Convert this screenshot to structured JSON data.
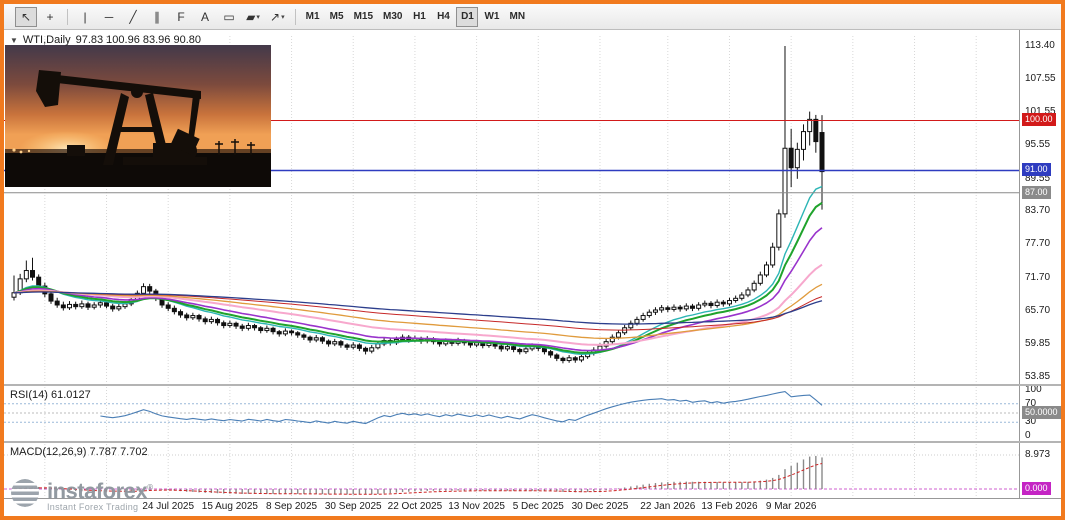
{
  "toolbar": {
    "items": [
      {
        "id": "pointer",
        "glyph": "↖",
        "active": true
      },
      {
        "id": "crosshair",
        "glyph": "+"
      },
      {
        "sep": true
      },
      {
        "id": "vertical-line",
        "glyph": "|"
      },
      {
        "id": "horizontal-line",
        "glyph": "─"
      },
      {
        "id": "trendline",
        "glyph": "╱"
      },
      {
        "id": "equidistant-channel",
        "glyph": "∥"
      },
      {
        "id": "fibonacci",
        "glyph": "F"
      },
      {
        "id": "text",
        "glyph": "A"
      },
      {
        "id": "text-label",
        "glyph": "▭"
      },
      {
        "id": "shapes",
        "glyph": "▰",
        "caret": true
      },
      {
        "id": "arrows",
        "glyph": "↗",
        "caret": true
      },
      {
        "sep": true
      }
    ],
    "timeframes": [
      "M1",
      "M5",
      "M15",
      "M30",
      "H1",
      "H4",
      "D1",
      "W1",
      "MN"
    ],
    "active_timeframe": "D1"
  },
  "chart_header": {
    "symbol": "WTI,Daily",
    "ohlc": "97.83 100.96 83.96 90.80"
  },
  "price_axis": {
    "ticks": [
      "113.40",
      "107.55",
      "101.55",
      "95.55",
      "89.55",
      "83.70",
      "77.70",
      "71.70",
      "65.70",
      "59.85",
      "53.85"
    ],
    "lines": [
      {
        "price": 100.0,
        "label": "100.00",
        "color": "#d21a1a"
      },
      {
        "price": 91.0,
        "label": "91.00",
        "color": "#2e3cc0"
      },
      {
        "price": 87.0,
        "label": "87.00",
        "color": "#8a8a8a"
      }
    ]
  },
  "rsi_panel": {
    "name": "RSI(14)",
    "value": "61.0127",
    "levels": [
      {
        "v": 100,
        "label": "100"
      },
      {
        "v": 70,
        "label": "70"
      },
      {
        "v": 30,
        "label": "30"
      },
      {
        "v": 0,
        "label": "0"
      }
    ],
    "mid_badge": {
      "v": 50,
      "label": "50.0000",
      "color": "#8a8a8a"
    },
    "line_color": "#4a7eb5"
  },
  "macd_panel": {
    "name": "MACD(12,26,9)",
    "value": "7.787 7.702",
    "top_level": {
      "v": 8.973,
      "label": "8.973"
    },
    "zero_badge": {
      "v": 0,
      "label": "0.000",
      "color": "#c424c4"
    },
    "histogram_color": "#8a8a8a",
    "signal_color": "#cf2525"
  },
  "date_axis": {
    "ticks": [
      {
        "i": 25,
        "label": "24 Jul 2025"
      },
      {
        "i": 35,
        "label": "15 Aug 2025"
      },
      {
        "i": 45,
        "label": "8 Sep 2025"
      },
      {
        "i": 55,
        "label": "30 Sep 2025"
      },
      {
        "i": 65,
        "label": "22 Oct 2025"
      },
      {
        "i": 75,
        "label": "13 Nov 2025"
      },
      {
        "i": 85,
        "label": "5 Dec 2025"
      },
      {
        "i": 95,
        "label": "30 Dec 2025"
      },
      {
        "i": 106,
        "label": "22 Jan 2026"
      },
      {
        "i": 116,
        "label": "13 Feb 2026"
      },
      {
        "i": 126,
        "label": "9 Mar 2026"
      }
    ]
  },
  "logo": {
    "brand": "instaforex",
    "registered": "®",
    "tagline": "Instant Forex Trading"
  },
  "photo": {
    "description": "oil pumpjack silhouette at sunset"
  },
  "chart_data": {
    "type": "candlestick",
    "symbol": "WTI",
    "timeframe": "Daily",
    "title": "WTI,Daily 97.83 100.96 83.96 90.80",
    "last_ohlc": {
      "open": 97.83,
      "high": 100.96,
      "low": 83.96,
      "close": 90.8
    },
    "ylim": [
      53.3,
      115.2
    ],
    "overlay_lines": [
      100.0,
      91.0,
      87.0
    ],
    "candles": [
      [
        68.2,
        72.1,
        67.6,
        69.0
      ],
      [
        69.0,
        72.4,
        68.6,
        71.5
      ],
      [
        71.5,
        74.8,
        70.9,
        73.0
      ],
      [
        73.0,
        75.3,
        71.2,
        71.8
      ],
      [
        71.8,
        72.3,
        69.6,
        70.2
      ],
      [
        70.2,
        70.8,
        68.2,
        68.8
      ],
      [
        68.8,
        69.3,
        67.0,
        67.5
      ],
      [
        67.5,
        68.1,
        66.3,
        66.8
      ],
      [
        66.8,
        67.4,
        65.8,
        66.3
      ],
      [
        66.3,
        67.5,
        65.9,
        66.9
      ],
      [
        66.9,
        67.4,
        66.0,
        66.5
      ],
      [
        66.5,
        67.6,
        66.1,
        67.0
      ],
      [
        67.0,
        67.4,
        65.9,
        66.4
      ],
      [
        66.4,
        67.3,
        66.0,
        66.8
      ],
      [
        66.8,
        67.8,
        66.3,
        67.2
      ],
      [
        67.2,
        67.6,
        66.2,
        66.6
      ],
      [
        66.6,
        67.0,
        65.6,
        66.1
      ],
      [
        66.1,
        67.0,
        65.7,
        66.5
      ],
      [
        66.5,
        67.5,
        66.1,
        67.0
      ],
      [
        67.0,
        68.3,
        66.6,
        67.8
      ],
      [
        67.8,
        69.4,
        67.4,
        68.9
      ],
      [
        68.9,
        70.7,
        68.5,
        70.1
      ],
      [
        70.1,
        70.6,
        68.8,
        69.3
      ],
      [
        69.3,
        69.7,
        67.5,
        68.0
      ],
      [
        68.0,
        68.4,
        66.3,
        66.8
      ],
      [
        66.8,
        67.3,
        65.7,
        66.2
      ],
      [
        66.2,
        66.7,
        65.1,
        65.6
      ],
      [
        65.6,
        66.0,
        64.5,
        65.0
      ],
      [
        65.0,
        65.4,
        64.0,
        64.5
      ],
      [
        64.5,
        65.4,
        64.1,
        64.9
      ],
      [
        64.9,
        65.2,
        63.8,
        64.3
      ],
      [
        64.3,
        64.7,
        63.3,
        63.8
      ],
      [
        63.8,
        64.7,
        63.4,
        64.2
      ],
      [
        64.2,
        64.5,
        63.1,
        63.6
      ],
      [
        63.6,
        64.0,
        62.6,
        63.1
      ],
      [
        63.1,
        64.0,
        62.7,
        63.5
      ],
      [
        63.5,
        63.8,
        62.5,
        63.0
      ],
      [
        63.0,
        63.4,
        62.1,
        62.6
      ],
      [
        62.6,
        63.6,
        62.2,
        63.1
      ],
      [
        63.1,
        63.4,
        62.2,
        62.7
      ],
      [
        62.7,
        63.0,
        61.7,
        62.2
      ],
      [
        62.2,
        63.1,
        61.8,
        62.6
      ],
      [
        62.6,
        62.9,
        61.5,
        62.0
      ],
      [
        62.0,
        62.3,
        61.1,
        61.6
      ],
      [
        61.6,
        62.6,
        61.2,
        62.1
      ],
      [
        62.1,
        62.4,
        61.3,
        61.8
      ],
      [
        61.8,
        62.1,
        60.9,
        61.4
      ],
      [
        61.4,
        61.7,
        60.5,
        61.0
      ],
      [
        61.0,
        61.3,
        60.0,
        60.5
      ],
      [
        60.5,
        61.4,
        60.1,
        60.9
      ],
      [
        60.9,
        61.2,
        59.8,
        60.3
      ],
      [
        60.3,
        60.6,
        59.3,
        59.8
      ],
      [
        59.8,
        60.7,
        59.4,
        60.2
      ],
      [
        60.2,
        60.5,
        59.1,
        59.6
      ],
      [
        59.6,
        59.9,
        58.7,
        59.2
      ],
      [
        59.2,
        60.1,
        58.8,
        59.6
      ],
      [
        59.6,
        59.9,
        58.5,
        59.0
      ],
      [
        59.0,
        59.3,
        57.9,
        58.5
      ],
      [
        58.5,
        59.6,
        58.1,
        59.1
      ],
      [
        59.1,
        60.3,
        58.8,
        59.8
      ],
      [
        59.8,
        60.9,
        59.4,
        60.4
      ],
      [
        60.4,
        60.8,
        59.5,
        60.0
      ],
      [
        60.0,
        61.1,
        59.6,
        60.6
      ],
      [
        60.6,
        61.5,
        60.2,
        61.0
      ],
      [
        61.0,
        61.4,
        60.0,
        60.5
      ],
      [
        60.5,
        61.3,
        60.1,
        60.8
      ],
      [
        60.8,
        61.1,
        59.8,
        60.3
      ],
      [
        60.3,
        61.2,
        59.9,
        60.7
      ],
      [
        60.7,
        61.0,
        59.7,
        60.2
      ],
      [
        60.2,
        60.5,
        59.3,
        59.8
      ],
      [
        59.8,
        60.8,
        59.4,
        60.3
      ],
      [
        60.3,
        60.6,
        59.4,
        59.9
      ],
      [
        59.9,
        60.9,
        59.5,
        60.4
      ],
      [
        60.4,
        60.7,
        59.5,
        60.0
      ],
      [
        60.0,
        60.3,
        59.1,
        59.6
      ],
      [
        59.6,
        60.5,
        59.2,
        60.0
      ],
      [
        60.0,
        60.3,
        59.0,
        59.5
      ],
      [
        59.5,
        60.4,
        59.1,
        59.9
      ],
      [
        59.9,
        60.2,
        58.9,
        59.4
      ],
      [
        59.4,
        59.7,
        58.4,
        58.9
      ],
      [
        58.9,
        59.8,
        58.5,
        59.3
      ],
      [
        59.3,
        59.6,
        58.3,
        58.8
      ],
      [
        58.8,
        59.1,
        57.9,
        58.4
      ],
      [
        58.4,
        59.4,
        58.0,
        58.9
      ],
      [
        58.9,
        59.9,
        58.5,
        59.4
      ],
      [
        59.4,
        59.7,
        58.5,
        59.0
      ],
      [
        59.0,
        59.3,
        57.9,
        58.4
      ],
      [
        58.4,
        58.7,
        57.3,
        57.8
      ],
      [
        57.8,
        58.1,
        56.7,
        57.2
      ],
      [
        57.2,
        57.5,
        56.3,
        56.8
      ],
      [
        56.8,
        57.8,
        56.4,
        57.3
      ],
      [
        57.3,
        57.6,
        56.4,
        56.9
      ],
      [
        56.9,
        58.0,
        56.5,
        57.5
      ],
      [
        57.5,
        58.6,
        57.1,
        58.1
      ],
      [
        58.1,
        59.2,
        57.7,
        58.7
      ],
      [
        58.7,
        59.9,
        58.3,
        59.4
      ],
      [
        59.4,
        60.7,
        59.0,
        60.2
      ],
      [
        60.2,
        61.5,
        59.8,
        61.0
      ],
      [
        61.0,
        62.3,
        60.6,
        61.8
      ],
      [
        61.8,
        63.2,
        61.4,
        62.7
      ],
      [
        62.7,
        64.0,
        62.3,
        63.5
      ],
      [
        63.5,
        64.7,
        63.1,
        64.2
      ],
      [
        64.2,
        65.4,
        63.8,
        64.9
      ],
      [
        64.9,
        66.0,
        64.5,
        65.5
      ],
      [
        65.5,
        66.4,
        65.0,
        65.9
      ],
      [
        65.9,
        66.8,
        65.4,
        66.3
      ],
      [
        66.3,
        66.7,
        65.5,
        66.0
      ],
      [
        66.0,
        66.9,
        65.6,
        66.4
      ],
      [
        66.4,
        66.8,
        65.6,
        66.1
      ],
      [
        66.1,
        67.1,
        65.7,
        66.6
      ],
      [
        66.6,
        67.0,
        65.7,
        66.2
      ],
      [
        66.2,
        67.3,
        65.8,
        66.8
      ],
      [
        66.8,
        67.6,
        66.4,
        67.1
      ],
      [
        67.1,
        67.5,
        66.2,
        66.7
      ],
      [
        66.7,
        67.8,
        66.3,
        67.3
      ],
      [
        67.3,
        67.7,
        66.5,
        67.0
      ],
      [
        67.0,
        68.1,
        66.6,
        67.6
      ],
      [
        67.6,
        68.5,
        67.2,
        68.0
      ],
      [
        68.0,
        69.1,
        67.6,
        68.6
      ],
      [
        68.6,
        70.0,
        68.2,
        69.5
      ],
      [
        69.5,
        71.2,
        69.1,
        70.7
      ],
      [
        70.7,
        72.8,
        70.3,
        72.2
      ],
      [
        72.2,
        74.6,
        71.8,
        74.0
      ],
      [
        74.0,
        78.0,
        73.5,
        77.2
      ],
      [
        77.2,
        84.0,
        76.6,
        83.2
      ],
      [
        83.2,
        113.4,
        82.5,
        95.0
      ],
      [
        95.0,
        98.5,
        88.0,
        91.5
      ],
      [
        91.5,
        96.0,
        89.5,
        94.8
      ],
      [
        94.8,
        99.3,
        92.8,
        98.0
      ],
      [
        98.0,
        101.6,
        95.5,
        100.2
      ],
      [
        100.2,
        101.0,
        94.2,
        96.2
      ],
      [
        97.83,
        100.96,
        83.96,
        90.8
      ]
    ],
    "moving_averages": [
      {
        "period": 12,
        "color": "#2cb5b5",
        "width": 1.4
      },
      {
        "period": 16,
        "color": "#1fa32c",
        "width": 2
      },
      {
        "period": 24,
        "color": "#9933cc",
        "width": 1.6
      },
      {
        "period": 45,
        "color": "#f7a8cd",
        "width": 2
      },
      {
        "period": 70,
        "color": "#e09b3d",
        "width": 1.3
      },
      {
        "period": 110,
        "color": "#c62828",
        "width": 1
      },
      {
        "period": 150,
        "color": "#2c3e8c",
        "width": 1.3
      }
    ],
    "indicators": {
      "rsi": {
        "period": 14,
        "value": 61.0127
      },
      "macd": {
        "fast": 12,
        "slow": 26,
        "signal": 9,
        "macd_value": 7.787,
        "signal_value": 7.702,
        "scale_top": 8.973
      }
    }
  }
}
